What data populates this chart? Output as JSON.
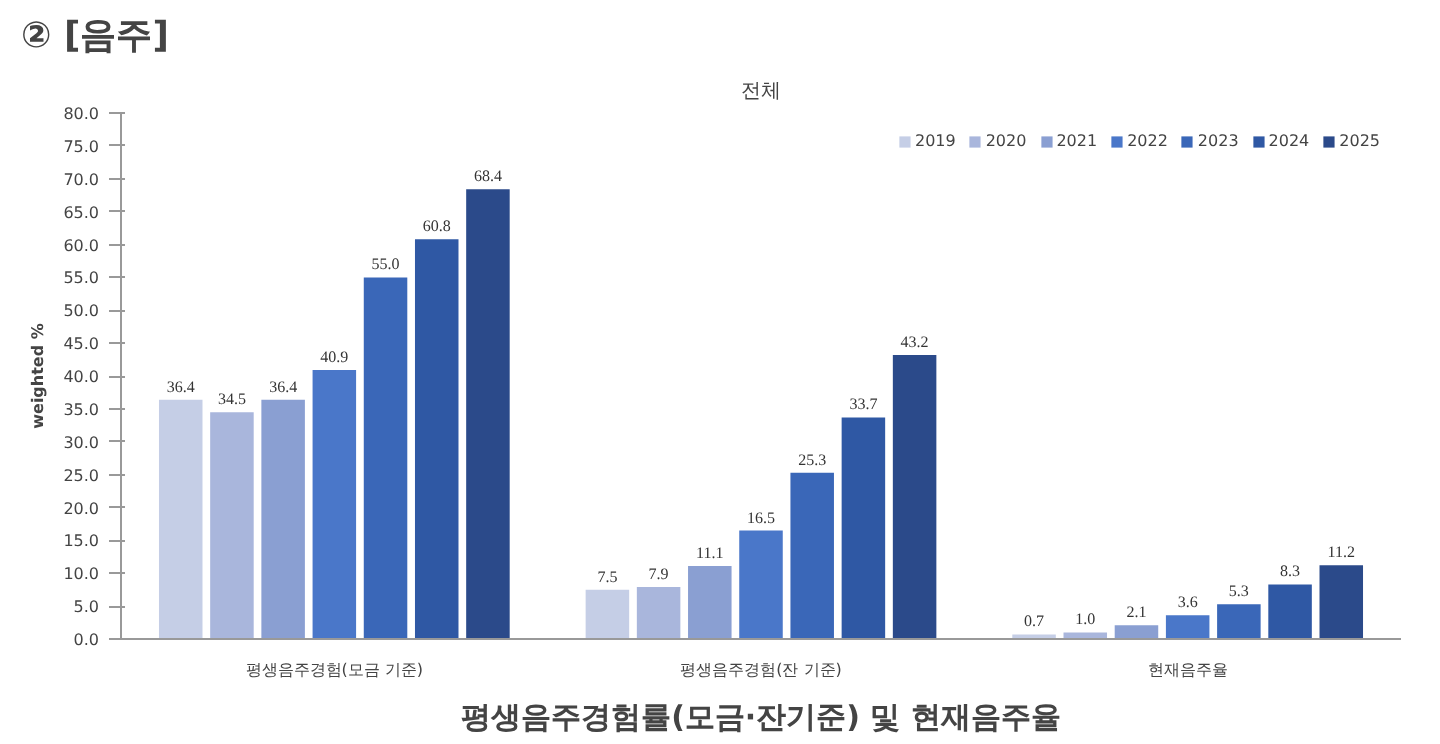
{
  "chart_data": {
    "type": "bar",
    "title": "② [음주]",
    "subtitle": "전체",
    "ylabel": "weighted %",
    "annotations": [
      "평생음주경험률(모금·잔기준) 및 현재음주율"
    ],
    "categories": [
      "평생음주경험(모금 기준)",
      "평생음주경험(잔 기준)",
      "현재음주율"
    ],
    "series": [
      {
        "name": "2019",
        "color": "#c5cee6",
        "values": [
          36.4,
          7.5,
          0.7
        ],
        "value_labels": [
          "36.4",
          "7.5",
          "0.7"
        ]
      },
      {
        "name": "2020",
        "color": "#a9b6dc",
        "values": [
          34.5,
          7.9,
          1.0
        ],
        "value_labels": [
          "34.5",
          "7.9",
          "1.0"
        ]
      },
      {
        "name": "2021",
        "color": "#8a9fd2",
        "values": [
          36.4,
          11.1,
          2.1
        ],
        "value_labels": [
          "36.4",
          "11.1",
          "2.1"
        ]
      },
      {
        "name": "2022",
        "color": "#4a77c9",
        "values": [
          40.9,
          16.5,
          3.6
        ],
        "value_labels": [
          "40.9",
          "16.5",
          "3.6"
        ]
      },
      {
        "name": "2023",
        "color": "#3a67b8",
        "values": [
          55.0,
          25.3,
          5.3
        ],
        "value_labels": [
          "55.0",
          "25.3",
          "5.3"
        ]
      },
      {
        "name": "2024",
        "color": "#2f58a4",
        "values": [
          60.8,
          33.7,
          8.3
        ],
        "value_labels": [
          "60.8",
          "33.7",
          "8.3"
        ]
      },
      {
        "name": "2025",
        "color": "#2b4a8a",
        "values": [
          68.4,
          43.2,
          11.2
        ],
        "value_labels": [
          "68.4",
          "43.2",
          "11.2"
        ]
      }
    ],
    "ylim": [
      0,
      80
    ],
    "yticks": [
      {
        "value": 0,
        "label": "0.0"
      },
      {
        "value": 5,
        "label": "5.0"
      },
      {
        "value": 10,
        "label": "10.0"
      },
      {
        "value": 15,
        "label": "15.0"
      },
      {
        "value": 20,
        "label": "20.0"
      },
      {
        "value": 25,
        "label": "25.0"
      },
      {
        "value": 30,
        "label": "30.0"
      },
      {
        "value": 35,
        "label": "35.0"
      },
      {
        "value": 40,
        "label": "40.0"
      },
      {
        "value": 45,
        "label": "45.0"
      },
      {
        "value": 50,
        "label": "50.0"
      },
      {
        "value": 55,
        "label": "55.0"
      },
      {
        "value": 60,
        "label": "60.0"
      },
      {
        "value": 65,
        "label": "65.0"
      },
      {
        "value": 70,
        "label": "70.0"
      },
      {
        "value": 75,
        "label": "75.0"
      },
      {
        "value": 80,
        "label": "80.0"
      }
    ],
    "legend": "top right",
    "grid": false
  }
}
